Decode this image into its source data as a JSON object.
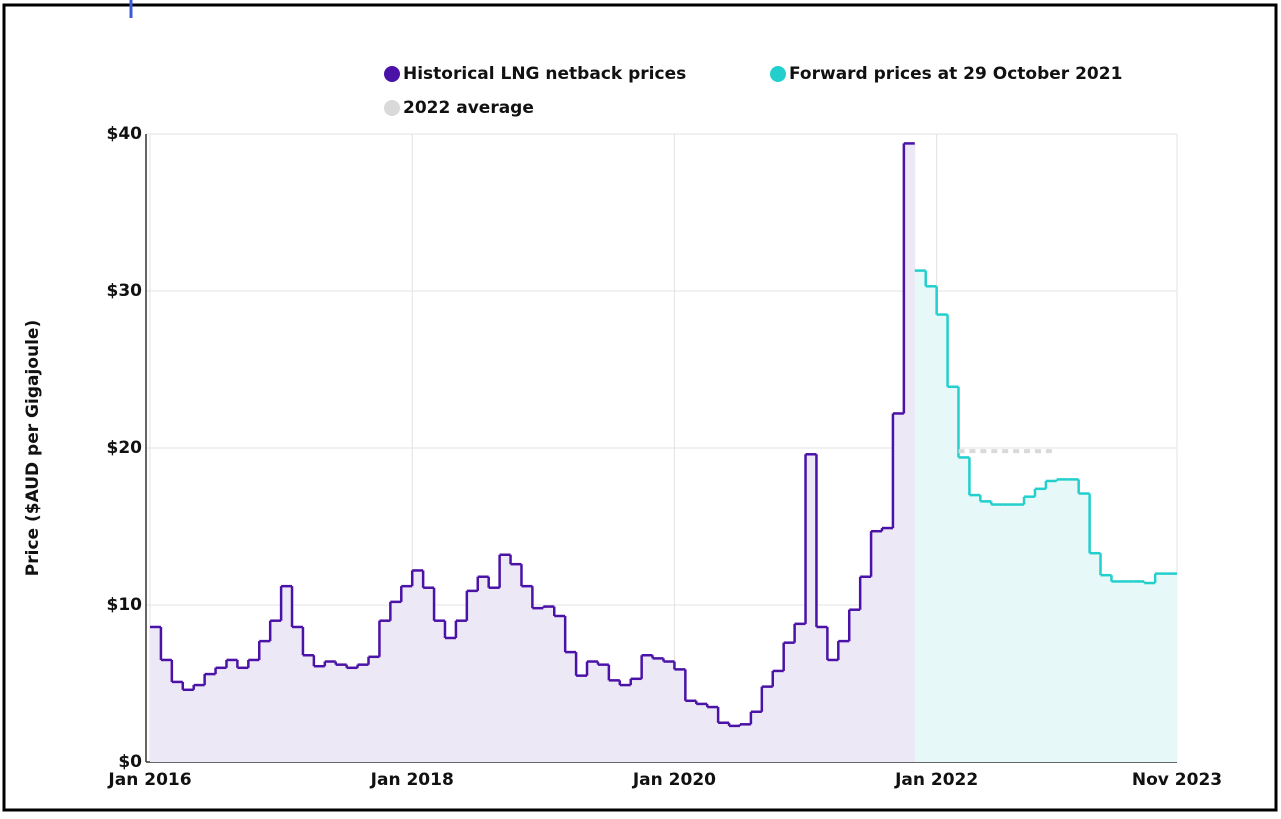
{
  "chart_data": {
    "type": "line",
    "step": true,
    "y_label": "Price ($AUD per Gigajoule)",
    "x": [
      "2016-01",
      "2016-02",
      "2016-03",
      "2016-04",
      "2016-05",
      "2016-06",
      "2016-07",
      "2016-08",
      "2016-09",
      "2016-10",
      "2016-11",
      "2016-12",
      "2017-01",
      "2017-02",
      "2017-03",
      "2017-04",
      "2017-05",
      "2017-06",
      "2017-07",
      "2017-08",
      "2017-09",
      "2017-10",
      "2017-11",
      "2017-12",
      "2018-01",
      "2018-02",
      "2018-03",
      "2018-04",
      "2018-05",
      "2018-06",
      "2018-07",
      "2018-08",
      "2018-09",
      "2018-10",
      "2018-11",
      "2018-12",
      "2019-01",
      "2019-02",
      "2019-03",
      "2019-04",
      "2019-05",
      "2019-06",
      "2019-07",
      "2019-08",
      "2019-09",
      "2019-10",
      "2019-11",
      "2019-12",
      "2020-01",
      "2020-02",
      "2020-03",
      "2020-04",
      "2020-05",
      "2020-06",
      "2020-07",
      "2020-08",
      "2020-09",
      "2020-10",
      "2020-11",
      "2020-12",
      "2021-01",
      "2021-02",
      "2021-03",
      "2021-04",
      "2021-05",
      "2021-06",
      "2021-07",
      "2021-08",
      "2021-09",
      "2021-10",
      "2021-11",
      "2021-12",
      "2022-01",
      "2022-02",
      "2022-03",
      "2022-04",
      "2022-05",
      "2022-06",
      "2022-07",
      "2022-08",
      "2022-09",
      "2022-10",
      "2022-11",
      "2022-12",
      "2023-01",
      "2023-02",
      "2023-03",
      "2023-04",
      "2023-05",
      "2023-06",
      "2023-07",
      "2023-08",
      "2023-09",
      "2023-10"
    ],
    "series": [
      {
        "name": "Historical LNG netback prices",
        "color": "#4a12a6",
        "fill": "#ede8f6",
        "values": [
          8.6,
          6.5,
          5.1,
          4.6,
          4.9,
          5.6,
          6.0,
          6.5,
          6.0,
          6.5,
          7.7,
          9.0,
          11.2,
          8.6,
          6.8,
          6.1,
          6.4,
          6.2,
          6.0,
          6.2,
          6.7,
          9.0,
          10.2,
          11.2,
          12.2,
          11.1,
          9.0,
          7.9,
          9.0,
          10.9,
          11.8,
          11.1,
          13.2,
          12.6,
          11.2,
          9.8,
          9.9,
          9.3,
          7.0,
          5.5,
          6.4,
          6.2,
          5.2,
          4.9,
          5.3,
          6.8,
          6.6,
          6.4,
          5.9,
          3.9,
          3.7,
          3.5,
          2.5,
          2.3,
          2.4,
          3.2,
          4.8,
          5.8,
          7.6,
          8.8,
          19.6,
          8.6,
          6.5,
          7.7,
          9.7,
          11.8,
          14.7,
          14.9,
          22.2,
          39.4,
          null,
          null,
          null,
          null,
          null,
          null,
          null,
          null,
          null,
          null,
          null,
          null,
          null,
          null,
          null,
          null,
          null,
          null,
          null,
          null,
          null,
          null,
          null,
          null
        ]
      },
      {
        "name": "Forward prices at 29 October 2021",
        "color": "#22cfcc",
        "fill": "#e6f8f8",
        "values": [
          null,
          null,
          null,
          null,
          null,
          null,
          null,
          null,
          null,
          null,
          null,
          null,
          null,
          null,
          null,
          null,
          null,
          null,
          null,
          null,
          null,
          null,
          null,
          null,
          null,
          null,
          null,
          null,
          null,
          null,
          null,
          null,
          null,
          null,
          null,
          null,
          null,
          null,
          null,
          null,
          null,
          null,
          null,
          null,
          null,
          null,
          null,
          null,
          null,
          null,
          null,
          null,
          null,
          null,
          null,
          null,
          null,
          null,
          null,
          null,
          null,
          null,
          null,
          null,
          null,
          null,
          null,
          null,
          null,
          null,
          31.3,
          30.3,
          28.5,
          23.9,
          19.4,
          17.0,
          16.6,
          16.4,
          16.4,
          16.4,
          16.9,
          17.4,
          17.9,
          18.0,
          18.0,
          17.1,
          13.3,
          11.9,
          11.5,
          11.5,
          11.5,
          11.4,
          12.0,
          12.0
        ]
      },
      {
        "name": "2022 average",
        "color": "#d9d9d9",
        "dashed": true,
        "values": [
          null,
          null,
          null,
          null,
          null,
          null,
          null,
          null,
          null,
          null,
          null,
          null,
          null,
          null,
          null,
          null,
          null,
          null,
          null,
          null,
          null,
          null,
          null,
          null,
          null,
          null,
          null,
          null,
          null,
          null,
          null,
          null,
          null,
          null,
          null,
          null,
          null,
          null,
          null,
          null,
          null,
          null,
          null,
          null,
          null,
          null,
          null,
          null,
          null,
          null,
          null,
          null,
          null,
          null,
          null,
          null,
          null,
          null,
          null,
          null,
          null,
          null,
          null,
          null,
          null,
          null,
          null,
          null,
          null,
          null,
          null,
          null,
          null,
          null,
          19.8,
          19.8,
          19.8,
          19.8,
          19.8,
          19.8,
          19.8,
          19.8,
          19.8,
          null,
          null,
          null,
          null,
          null,
          null,
          null,
          null,
          null,
          null,
          null
        ]
      }
    ],
    "xlim": [
      "2016-01",
      "2023-11"
    ],
    "xticks": [
      {
        "value": "2016-01",
        "label": "Jan 2016"
      },
      {
        "value": "2018-01",
        "label": "Jan 2018"
      },
      {
        "value": "2020-01",
        "label": "Jan 2020"
      },
      {
        "value": "2022-01",
        "label": "Jan 2022"
      },
      {
        "value": "2023-11",
        "label": "Nov 2023"
      }
    ],
    "ylim": [
      0,
      40
    ],
    "yticks": [
      {
        "value": 0,
        "label": "$0"
      },
      {
        "value": 10,
        "label": "$10"
      },
      {
        "value": 20,
        "label": "$20"
      },
      {
        "value": 30,
        "label": "$30"
      },
      {
        "value": 40,
        "label": "$40"
      }
    ],
    "grid": true,
    "legend": "top"
  }
}
